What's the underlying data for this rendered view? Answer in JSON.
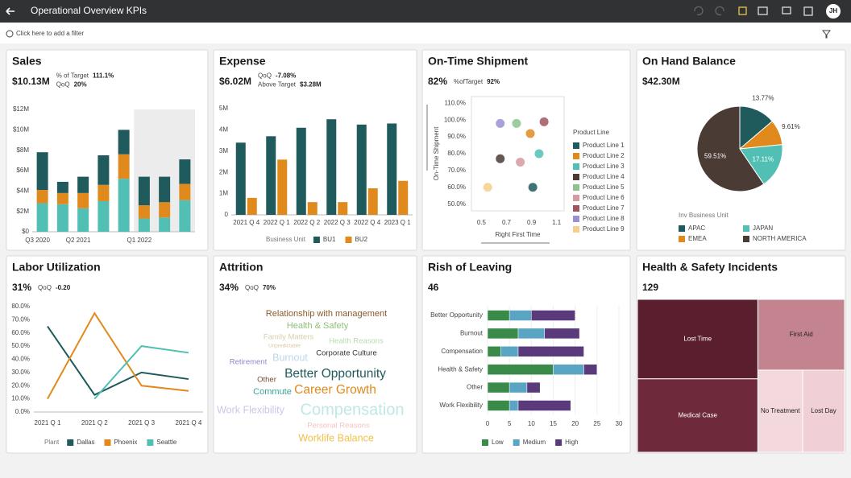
{
  "header": {
    "title": "Operational Overview KPIs",
    "user_initials": "JH"
  },
  "filter_bar": {
    "placeholder": "Click here to add a filter"
  },
  "chart_data": [
    {
      "type": "stacked_bar",
      "title": "Sales",
      "kpi": "$10.13M",
      "metrics": [
        {
          "label": "% of Target",
          "value": "111.1%"
        },
        {
          "label": "QoQ",
          "value": "20%"
        }
      ],
      "categories": [
        "Q3 2020",
        null,
        "Q2 2021",
        null,
        null,
        "Q1 2022",
        null,
        null
      ],
      "series": [
        {
          "color": "#52bfb5",
          "values": [
            2.8,
            2.7,
            2.3,
            3.0,
            5.2,
            1.3,
            1.4,
            3.1
          ]
        },
        {
          "color": "#e08a1e",
          "values": [
            1.3,
            1.1,
            1.5,
            1.6,
            2.4,
            1.3,
            1.5,
            1.6
          ]
        },
        {
          "color": "#1f5a5c",
          "values": [
            3.7,
            1.1,
            1.6,
            2.9,
            2.4,
            2.8,
            2.5,
            2.4
          ]
        }
      ],
      "ylim": [
        0,
        12
      ],
      "yticks": [
        {
          "value": 0,
          "label": "$0"
        },
        {
          "value": 2,
          "label": "$2M"
        },
        {
          "value": 4,
          "label": "$4M"
        },
        {
          "value": 6,
          "label": "$6M"
        },
        {
          "value": 8,
          "label": "$8M"
        },
        {
          "value": 10,
          "label": "$10M"
        },
        {
          "value": 12,
          "label": "$12M"
        }
      ]
    },
    {
      "type": "bar",
      "title": "Expense",
      "kpi": "$6.02M",
      "metrics": [
        {
          "label": "QoQ",
          "value": "-7.08%"
        },
        {
          "label": "Above Target",
          "value": "$3.28M"
        }
      ],
      "categories": [
        "2021 Q 4",
        "2022 Q 1",
        "2022 Q 2",
        "2022 Q 3",
        "2022 Q 4",
        "2023 Q 1"
      ],
      "legend_title": "Business Unit",
      "series": [
        {
          "name": "BU1",
          "color": "#1f5a5c",
          "values": [
            3.4,
            3.7,
            4.1,
            4.5,
            4.25,
            4.3
          ]
        },
        {
          "name": "BU2",
          "color": "#e08a1e",
          "values": [
            0.8,
            2.6,
            0.6,
            0.6,
            1.25,
            1.6
          ]
        }
      ],
      "ylim": [
        0,
        5
      ],
      "yticks": [
        0,
        {
          "value": 1,
          "label": "1M"
        },
        {
          "value": 2,
          "label": "2M"
        },
        {
          "value": 3,
          "label": "3M"
        },
        {
          "value": 4,
          "label": "4M"
        },
        {
          "value": 5,
          "label": "5M"
        }
      ]
    },
    {
      "type": "scatter",
      "title": "On-Time Shipment",
      "kpi": "82%",
      "metrics": [
        {
          "label": "%ofTarget",
          "value": "92%"
        }
      ],
      "x_label": "Right First Time",
      "y_label": "On-Time Shipment",
      "legend_title": "Product Line",
      "xlim": [
        0.42,
        1.16
      ],
      "xticks": [
        0.5,
        0.7,
        0.9,
        1.1
      ],
      "ylim": [
        46,
        114
      ],
      "yticks": [
        {
          "value": 50,
          "label": "50.0%"
        },
        {
          "value": 60,
          "label": "60.0%"
        },
        {
          "value": 70,
          "label": "70.0%"
        },
        {
          "value": 80,
          "label": "80.0%"
        },
        {
          "value": 90,
          "label": "90.0%"
        },
        {
          "value": 100,
          "label": "100.0%"
        },
        {
          "value": 110,
          "label": "110.0%"
        }
      ],
      "series": [
        {
          "name": "Product Line 1",
          "color": "#1f5a5c",
          "x": [
            0.91
          ],
          "values": [
            60
          ]
        },
        {
          "name": "Product Line 2",
          "color": "#e08a1e",
          "x": [
            0.89
          ],
          "values": [
            92
          ]
        },
        {
          "name": "Product Line 3",
          "color": "#52bfb5",
          "x": [
            0.96
          ],
          "values": [
            80
          ]
        },
        {
          "name": "Product Line 4",
          "color": "#4a3b35",
          "x": [
            0.65
          ],
          "values": [
            77
          ]
        },
        {
          "name": "Product Line 5",
          "color": "#8cc48c",
          "x": [
            0.78
          ],
          "values": [
            98
          ]
        },
        {
          "name": "Product Line 6",
          "color": "#d49aa0",
          "x": [
            0.81
          ],
          "values": [
            75
          ]
        },
        {
          "name": "Product Line 7",
          "color": "#a25560",
          "x": [
            1.0
          ],
          "values": [
            99
          ]
        },
        {
          "name": "Product Line 8",
          "color": "#9b8fd4",
          "x": [
            0.65
          ],
          "values": [
            98
          ]
        },
        {
          "name": "Product Line 9",
          "color": "#f6cf8a",
          "x": [
            0.55
          ],
          "values": [
            60
          ]
        }
      ]
    },
    {
      "type": "pie",
      "title": "On Hand Balance",
      "kpi": "$42.30M",
      "legend_title": "Inv Business Unit",
      "categories": [
        "APAC",
        "EMEA",
        "JAPAN",
        "NORTH AMERICA"
      ],
      "values": [
        13.77,
        9.61,
        17.11,
        59.51
      ],
      "value_labels": [
        "13.77%",
        "9.61%",
        "17.11%",
        "59.51%"
      ],
      "colors": [
        "#1f5a5c",
        "#e08a1e",
        "#52bfb5",
        "#4a3b35"
      ]
    },
    {
      "type": "line",
      "title": "Labor Utilization",
      "kpi": "31%",
      "metrics": [
        {
          "label": "QoQ",
          "value": "-0.20"
        }
      ],
      "categories": [
        "2021 Q 1",
        "2021 Q 2",
        "2021 Q 3",
        "2021 Q 4"
      ],
      "legend_title": "Plant",
      "series": [
        {
          "name": "Dallas",
          "color": "#1f5a5c",
          "values": [
            65,
            13,
            30,
            25
          ]
        },
        {
          "name": "Phoenix",
          "color": "#e08a1e",
          "values": [
            10,
            75,
            20,
            16
          ]
        },
        {
          "name": "Seattle",
          "color": "#52bfb5",
          "values": [
            null,
            10,
            50,
            45
          ]
        }
      ],
      "ylim": [
        0,
        80
      ],
      "yticks": [
        {
          "value": 0,
          "label": "0.0%"
        },
        {
          "value": 10,
          "label": "10.0%"
        },
        {
          "value": 20,
          "label": "20.0%"
        },
        {
          "value": 30,
          "label": "30.0%"
        },
        {
          "value": 40,
          "label": "40.0%"
        },
        {
          "value": 50,
          "label": "50.0%"
        },
        {
          "value": 60,
          "label": "60.0%"
        },
        {
          "value": 70,
          "label": "70.0%"
        },
        {
          "value": 80,
          "label": "80.0%"
        }
      ]
    },
    {
      "type": "wordcloud",
      "title": "Attrition",
      "kpi": "34%",
      "metrics": [
        {
          "label": "QoQ",
          "value": "70%"
        }
      ],
      "categories": [
        "Relationship with management",
        "Health & Safety",
        "Family Matters",
        "Unpredictable",
        "Health Reasons",
        "Burnout",
        "Corporate Culture",
        "Retirement",
        "Better Opportunity",
        "Other",
        "Commute",
        "Career Growth",
        "Work Flexibility",
        "Compensation",
        "Personal Reasons",
        "Worklife Balance"
      ],
      "values": [
        4,
        4,
        3,
        1,
        3,
        5,
        3,
        3,
        7,
        3,
        4,
        7,
        5,
        10,
        3,
        5
      ],
      "colors": [
        "#8a5a2a",
        "#8fc07a",
        "#d6cfa8",
        "#d8c8a0",
        "#b8dcb0",
        "#bcd8ec",
        "#333333",
        "#8f88c8",
        "#1f5a5c",
        "#7a4a3a",
        "#3aa59a",
        "#e08a1e",
        "#cfc4ea",
        "#bfe8e4",
        "#f2c4c4",
        "#f2c24a"
      ]
    },
    {
      "type": "hbar_stacked",
      "title": "Rish of Leaving",
      "kpi": "46",
      "categories": [
        "Better Opportunity",
        "Burnout",
        "Compensation",
        "Health & Safety",
        "Other",
        "Work Flexibility"
      ],
      "series": [
        {
          "name": "Low",
          "color": "#3a8a4a",
          "values": [
            5,
            7,
            3,
            15,
            5,
            5
          ]
        },
        {
          "name": "Medium",
          "color": "#5aa5c4",
          "values": [
            5,
            6,
            4,
            7,
            4,
            2
          ]
        },
        {
          "name": "High",
          "color": "#5a3a7a",
          "values": [
            10,
            8,
            15,
            3,
            3,
            12
          ]
        }
      ],
      "xlim": [
        0,
        30
      ],
      "xticks": [
        0,
        5,
        10,
        15,
        20,
        25,
        30
      ],
      "grid": true
    },
    {
      "type": "treemap",
      "title": "Health & Safety Incidents",
      "kpi": "129",
      "categories": [
        "Lost Time",
        "Medical Case",
        "First Aid",
        "No Treatment",
        "Lost Day"
      ],
      "values": [
        39,
        36,
        25,
        15,
        14
      ],
      "colors": [
        "#5a1e2e",
        "#6e2a3a",
        "#c3848f",
        "#f3d9de",
        "#f0d0d6"
      ]
    }
  ]
}
